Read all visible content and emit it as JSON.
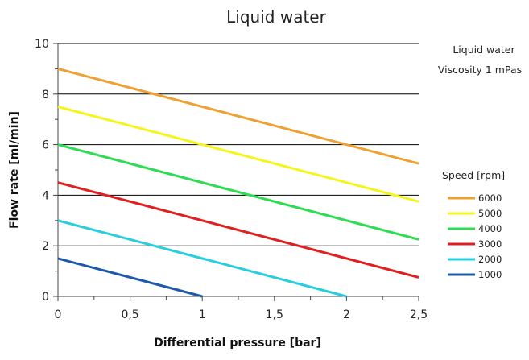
{
  "chart_data": {
    "type": "line",
    "title": "Liquid water",
    "xlabel": "Differential pressure [bar]",
    "ylabel": "Flow rate [ml/min]",
    "xlim": [
      0,
      2.5
    ],
    "ylim": [
      0,
      10
    ],
    "x_ticks": [
      {
        "value": 0,
        "label": "0"
      },
      {
        "value": 0.5,
        "label": "0,5"
      },
      {
        "value": 1,
        "label": "1"
      },
      {
        "value": 1.5,
        "label": "1,5"
      },
      {
        "value": 2,
        "label": "2"
      },
      {
        "value": 2.5,
        "label": "2,5"
      }
    ],
    "y_ticks": [
      {
        "value": 0,
        "label": "0"
      },
      {
        "value": 2,
        "label": "2"
      },
      {
        "value": 4,
        "label": "4"
      },
      {
        "value": 6,
        "label": "6"
      },
      {
        "value": 8,
        "label": "8"
      },
      {
        "value": 10,
        "label": "10"
      }
    ],
    "grid": "horizontal",
    "annotations": [
      "Liquid water",
      "Viscosity 1 mPas"
    ],
    "legend_title": "Speed [rpm]",
    "legend_position": "right",
    "series": [
      {
        "name": "6000",
        "color": "#F0A030",
        "x": [
          0,
          2.5
        ],
        "y": [
          9.0,
          5.25
        ]
      },
      {
        "name": "5000",
        "color": "#F5F51E",
        "x": [
          0,
          2.5
        ],
        "y": [
          7.5,
          3.75
        ]
      },
      {
        "name": "4000",
        "color": "#2EDC52",
        "x": [
          0,
          2.5
        ],
        "y": [
          6.0,
          2.25
        ]
      },
      {
        "name": "3000",
        "color": "#E02020",
        "x": [
          0,
          2.5
        ],
        "y": [
          4.5,
          0.75
        ]
      },
      {
        "name": "2000",
        "color": "#28CDE0",
        "x": [
          0,
          2.0
        ],
        "y": [
          3.0,
          0.0
        ]
      },
      {
        "name": "1000",
        "color": "#1E5AAA",
        "x": [
          0,
          1.0
        ],
        "y": [
          1.5,
          0.0
        ]
      }
    ]
  }
}
